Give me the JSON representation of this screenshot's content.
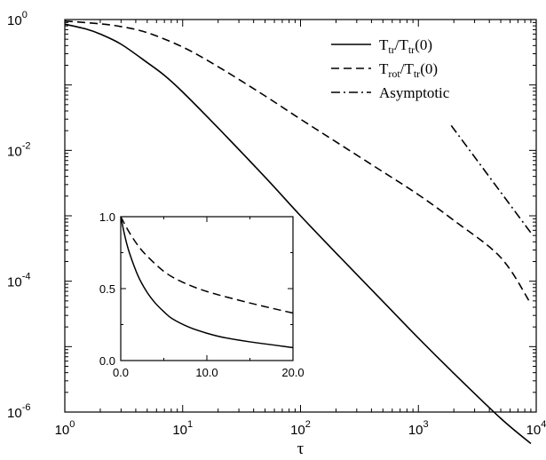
{
  "chart_data": [
    {
      "type": "line",
      "xlabel": "τ",
      "ylabel": "",
      "xscale": "log",
      "yscale": "log",
      "xlim": [
        1,
        10000
      ],
      "ylim": [
        1e-06,
        1
      ],
      "grid": false,
      "legend_position": "top-right",
      "x_tick_labels": [
        {
          "base": "10",
          "exp": "0"
        },
        {
          "base": "10",
          "exp": "1"
        },
        {
          "base": "10",
          "exp": "2"
        },
        {
          "base": "10",
          "exp": "3"
        },
        {
          "base": "10",
          "exp": "4"
        }
      ],
      "y_tick_labels": [
        {
          "base": "10",
          "exp": "-6"
        },
        {
          "base": "10",
          "exp": "-4"
        },
        {
          "base": "10",
          "exp": "-2"
        },
        {
          "base": "10",
          "exp": "0"
        }
      ],
      "legend": [
        {
          "main": "T",
          "sub": "tr",
          "rest": "/T",
          "sub2": "tr",
          "tail": "(0)",
          "style": "solid"
        },
        {
          "main": "T",
          "sub": "rot",
          "rest": "/T",
          "sub2": "tr",
          "tail": "(0)",
          "style": "dashed"
        },
        {
          "main": "Asymptotic",
          "sub": "",
          "rest": "",
          "sub2": "",
          "tail": "",
          "style": "dashdot"
        }
      ],
      "series": [
        {
          "style": "solid",
          "x": [
            1,
            1.5,
            2,
            3,
            5,
            7,
            10,
            20,
            50,
            100,
            200,
            500,
            1000,
            2000,
            5000,
            9000
          ],
          "y": [
            0.85,
            0.72,
            0.6,
            0.42,
            0.22,
            0.14,
            0.078,
            0.022,
            0.0039,
            0.001,
            0.00027,
            4.9e-05,
            1.35e-05,
            3.9e-06,
            8e-07,
            3.3e-07
          ]
        },
        {
          "style": "dashed",
          "x": [
            1,
            2,
            3,
            5,
            10,
            20,
            50,
            100,
            200,
            500,
            1000,
            2000,
            5000,
            9000
          ],
          "y": [
            0.95,
            0.86,
            0.78,
            0.63,
            0.38,
            0.19,
            0.068,
            0.03,
            0.0135,
            0.0047,
            0.0021,
            0.00085,
            0.00023,
            4.5e-05
          ]
        },
        {
          "style": "dashdot",
          "x": [
            1900,
            9000
          ],
          "y": [
            0.024,
            0.00055
          ]
        }
      ]
    },
    {
      "type": "line",
      "inset": true,
      "xlim": [
        0,
        20
      ],
      "ylim": [
        0,
        1
      ],
      "x_tick_labels": [
        "0.0",
        "10.0",
        "20.0"
      ],
      "y_tick_labels": [
        "0.0",
        "0.5",
        "1.0"
      ],
      "series": [
        {
          "style": "solid",
          "x": [
            0,
            0.5,
            1,
            2,
            3,
            4,
            5,
            6,
            8,
            10,
            12,
            15,
            20
          ],
          "y": [
            1,
            0.86,
            0.75,
            0.59,
            0.48,
            0.4,
            0.34,
            0.29,
            0.23,
            0.19,
            0.16,
            0.13,
            0.09
          ]
        },
        {
          "style": "dashed",
          "x": [
            0,
            1,
            2,
            3,
            5,
            7,
            10,
            15,
            20
          ],
          "y": [
            1,
            0.89,
            0.8,
            0.73,
            0.62,
            0.55,
            0.48,
            0.4,
            0.33
          ]
        }
      ]
    }
  ]
}
